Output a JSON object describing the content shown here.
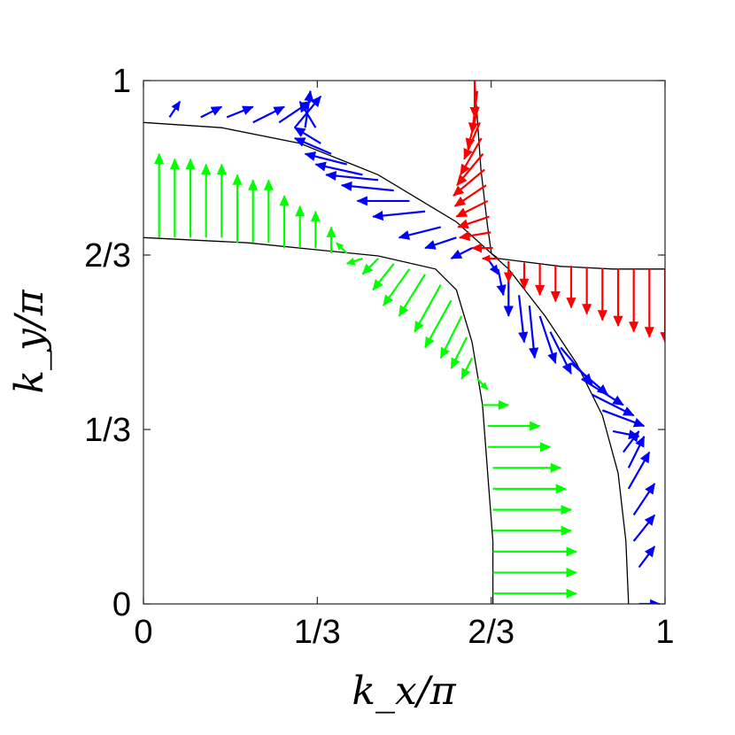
{
  "chart_data": {
    "type": "quiver",
    "xlabel": "k_x/π",
    "ylabel": "k_y/π",
    "xlim": [
      0,
      1
    ],
    "ylim": [
      0,
      1
    ],
    "xticks": [
      "0",
      "1/3",
      "2/3",
      "1"
    ],
    "yticks": [
      "0",
      "1/3",
      "2/3",
      "1"
    ],
    "grid": false,
    "legend": "none",
    "colors": {
      "outer": "#0000ff",
      "inner": "#00ff00",
      "corner": "#ff0000",
      "contour": "#000000"
    },
    "contours": [
      {
        "name": "outer",
        "points": [
          [
            0,
            0.92
          ],
          [
            0.15,
            0.91
          ],
          [
            0.3,
            0.88
          ],
          [
            0.45,
            0.82
          ],
          [
            0.6,
            0.73
          ],
          [
            0.7,
            0.64
          ],
          [
            0.77,
            0.55
          ],
          [
            0.83,
            0.46
          ],
          [
            0.88,
            0.36
          ],
          [
            0.91,
            0.25
          ],
          [
            0.925,
            0.12
          ],
          [
            0.93,
            0
          ]
        ]
      },
      {
        "name": "inner",
        "points": [
          [
            0,
            0.7
          ],
          [
            0.2,
            0.69
          ],
          [
            0.35,
            0.675
          ],
          [
            0.45,
            0.665
          ],
          [
            0.56,
            0.64
          ],
          [
            0.6,
            0.6
          ],
          [
            0.63,
            0.5
          ],
          [
            0.65,
            0.38
          ],
          [
            0.66,
            0.25
          ],
          [
            0.67,
            0.12
          ],
          [
            0.67,
            0
          ]
        ]
      },
      {
        "name": "corner-lower",
        "points": [
          [
            0.68,
            0.66
          ],
          [
            0.72,
            0.655
          ],
          [
            0.8,
            0.645
          ],
          [
            0.9,
            0.64
          ],
          [
            1.0,
            0.64
          ]
        ]
      },
      {
        "name": "corner-upper",
        "points": [
          [
            0.68,
            0.66
          ],
          [
            0.667,
            0.67
          ],
          [
            0.66,
            0.72
          ],
          [
            0.647,
            0.83
          ],
          [
            0.635,
            1.0
          ]
        ]
      }
    ],
    "series": [
      {
        "name": "outer",
        "arrows": [
          [
            0.05,
            0.93,
            0.02,
            0.03
          ],
          [
            0.11,
            0.93,
            0.04,
            0.02
          ],
          [
            0.16,
            0.93,
            0.05,
            0.02
          ],
          [
            0.21,
            0.92,
            0.06,
            0.03
          ],
          [
            0.26,
            0.92,
            0.06,
            0.04
          ],
          [
            0.29,
            0.91,
            0.05,
            0.06
          ],
          [
            0.31,
            0.91,
            0.01,
            0.07
          ],
          [
            0.33,
            0.91,
            -0.03,
            0.05
          ],
          [
            0.34,
            0.88,
            -0.05,
            0.03
          ],
          [
            0.36,
            0.86,
            -0.07,
            0.03
          ],
          [
            0.39,
            0.84,
            -0.08,
            0.02
          ],
          [
            0.42,
            0.82,
            -0.09,
            0.02
          ],
          [
            0.45,
            0.81,
            -0.1,
            0.01
          ],
          [
            0.48,
            0.79,
            -0.1,
            0.01
          ],
          [
            0.51,
            0.77,
            -0.1,
            0.0
          ],
          [
            0.54,
            0.75,
            -0.1,
            -0.01
          ],
          [
            0.57,
            0.72,
            -0.08,
            -0.02
          ],
          [
            0.6,
            0.7,
            -0.06,
            -0.02
          ],
          [
            0.63,
            0.68,
            -0.04,
            -0.02
          ],
          [
            0.66,
            0.66,
            0.02,
            -0.03
          ],
          [
            0.68,
            0.64,
            0.01,
            -0.05
          ],
          [
            0.7,
            0.62,
            0.0,
            -0.07
          ],
          [
            0.72,
            0.59,
            0.01,
            -0.09
          ],
          [
            0.74,
            0.57,
            0.01,
            -0.1
          ],
          [
            0.76,
            0.55,
            0.03,
            -0.09
          ],
          [
            0.78,
            0.52,
            0.04,
            -0.08
          ],
          [
            0.8,
            0.49,
            0.06,
            -0.07
          ],
          [
            0.82,
            0.46,
            0.07,
            -0.06
          ],
          [
            0.84,
            0.43,
            0.08,
            -0.05
          ],
          [
            0.86,
            0.4,
            0.08,
            -0.04
          ],
          [
            0.88,
            0.37,
            0.08,
            -0.03
          ],
          [
            0.9,
            0.33,
            0.05,
            -0.01
          ],
          [
            0.92,
            0.29,
            0.03,
            0.04
          ],
          [
            0.93,
            0.26,
            0.03,
            0.06
          ],
          [
            0.93,
            0.22,
            0.04,
            0.07
          ],
          [
            0.94,
            0.17,
            0.04,
            0.06
          ],
          [
            0.94,
            0.12,
            0.04,
            0.05
          ],
          [
            0.95,
            0.07,
            0.03,
            0.04
          ],
          [
            0.95,
            0.0,
            0.04,
            0.0
          ]
        ]
      },
      {
        "name": "inner",
        "arrows": [
          [
            0.03,
            0.7,
            0.0,
            0.16
          ],
          [
            0.06,
            0.7,
            0.0,
            0.15
          ],
          [
            0.09,
            0.7,
            0.0,
            0.15
          ],
          [
            0.12,
            0.7,
            0.0,
            0.14
          ],
          [
            0.15,
            0.7,
            0.0,
            0.14
          ],
          [
            0.18,
            0.69,
            0.0,
            0.13
          ],
          [
            0.21,
            0.69,
            0.0,
            0.12
          ],
          [
            0.24,
            0.69,
            0.0,
            0.12
          ],
          [
            0.27,
            0.68,
            0.0,
            0.1
          ],
          [
            0.3,
            0.68,
            0.0,
            0.08
          ],
          [
            0.33,
            0.68,
            0.0,
            0.07
          ],
          [
            0.36,
            0.67,
            0.0,
            0.05
          ],
          [
            0.39,
            0.67,
            -0.02,
            0.02
          ],
          [
            0.42,
            0.66,
            -0.03,
            -0.01
          ],
          [
            0.45,
            0.66,
            -0.03,
            -0.03
          ],
          [
            0.48,
            0.65,
            -0.04,
            -0.05
          ],
          [
            0.51,
            0.64,
            -0.05,
            -0.07
          ],
          [
            0.54,
            0.63,
            -0.05,
            -0.08
          ],
          [
            0.57,
            0.61,
            -0.05,
            -0.09
          ],
          [
            0.59,
            0.58,
            -0.05,
            -0.09
          ],
          [
            0.61,
            0.55,
            -0.04,
            -0.08
          ],
          [
            0.62,
            0.51,
            -0.03,
            -0.06
          ],
          [
            0.63,
            0.47,
            -0.02,
            -0.04
          ],
          [
            0.64,
            0.43,
            0.02,
            -0.02
          ],
          [
            0.65,
            0.38,
            0.05,
            0.0
          ],
          [
            0.66,
            0.34,
            0.1,
            0.0
          ],
          [
            0.66,
            0.3,
            0.12,
            0.0
          ],
          [
            0.67,
            0.26,
            0.13,
            0.0
          ],
          [
            0.67,
            0.22,
            0.14,
            0.0
          ],
          [
            0.67,
            0.18,
            0.15,
            0.0
          ],
          [
            0.67,
            0.14,
            0.15,
            0.0
          ],
          [
            0.67,
            0.1,
            0.16,
            0.0
          ],
          [
            0.67,
            0.06,
            0.16,
            0.0
          ],
          [
            0.67,
            0.02,
            0.16,
            0.0
          ]
        ]
      },
      {
        "name": "corner",
        "arrows": [
          [
            0.635,
            1.0,
            0.0,
            -0.07
          ],
          [
            0.64,
            0.98,
            -0.01,
            -0.08
          ],
          [
            0.642,
            0.95,
            -0.02,
            -0.08
          ],
          [
            0.645,
            0.92,
            -0.03,
            -0.07
          ],
          [
            0.648,
            0.89,
            -0.04,
            -0.07
          ],
          [
            0.651,
            0.86,
            -0.05,
            -0.06
          ],
          [
            0.654,
            0.83,
            -0.06,
            -0.05
          ],
          [
            0.657,
            0.8,
            -0.06,
            -0.04
          ],
          [
            0.66,
            0.77,
            -0.06,
            -0.03
          ],
          [
            0.663,
            0.74,
            -0.06,
            -0.02
          ],
          [
            0.666,
            0.71,
            -0.06,
            -0.01
          ],
          [
            0.67,
            0.68,
            -0.04,
            0.0
          ],
          [
            0.68,
            0.66,
            -0.03,
            0.0
          ],
          [
            0.7,
            0.655,
            0.0,
            -0.04
          ],
          [
            0.73,
            0.652,
            0.0,
            -0.05
          ],
          [
            0.76,
            0.65,
            0.0,
            -0.06
          ],
          [
            0.79,
            0.648,
            0.0,
            -0.07
          ],
          [
            0.82,
            0.646,
            0.0,
            -0.08
          ],
          [
            0.85,
            0.644,
            0.0,
            -0.09
          ],
          [
            0.88,
            0.642,
            0.0,
            -0.1
          ],
          [
            0.91,
            0.641,
            0.0,
            -0.11
          ],
          [
            0.94,
            0.64,
            0.0,
            -0.12
          ],
          [
            0.97,
            0.64,
            0.0,
            -0.13
          ],
          [
            1.0,
            0.64,
            0.0,
            -0.14
          ]
        ]
      }
    ]
  }
}
